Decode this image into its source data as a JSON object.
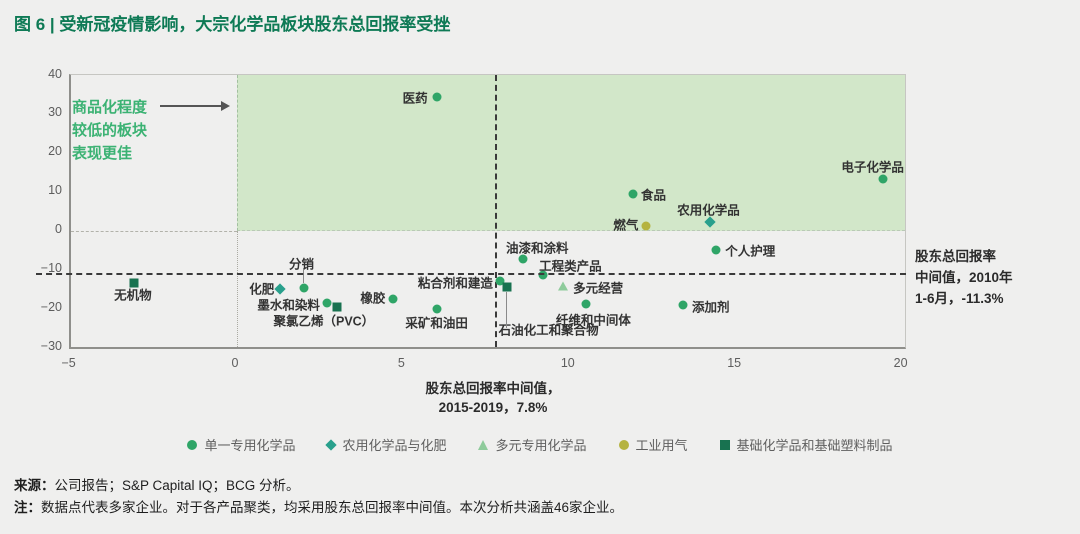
{
  "title": "图 6 | 受新冠疫情影响，大宗化学品板块股东总回报率受挫",
  "colors": {
    "title_green": "#0e7a55",
    "annotation_green": "#3bb273",
    "highlight_region": "#d2e7c9",
    "median_line": "#3a3a3a"
  },
  "chart_data": {
    "type": "scatter",
    "xlabel_line1": "股东总回报率中间值，",
    "xlabel_line2": "2015-2019，7.8%",
    "ylabel": "",
    "xlim": [
      -5,
      20
    ],
    "ylim": [
      -30,
      40
    ],
    "x_ticks": [
      -5,
      0,
      5,
      10,
      15,
      20
    ],
    "y_ticks": [
      40,
      30,
      20,
      10,
      0,
      -10,
      -20,
      -30
    ],
    "median_x_2015_2019": 7.8,
    "median_y_2010_h1": -11.3,
    "quadrant_annotation": {
      "lines": [
        "商品化程度",
        "较低的板块",
        "表现更佳"
      ]
    },
    "right_annotation": {
      "lines": [
        "股东总回报率",
        "中间值，2010年",
        "1-6月，-11.3%"
      ]
    },
    "legend_position": "bottom-center",
    "grid": false,
    "series": [
      {
        "name": "单一专用化学品",
        "marker": "circle",
        "color": "#2fa567",
        "points": [
          {
            "label": "医药",
            "x": 6.0,
            "y": 34.5,
            "lp": {
              "dx": -9,
              "dy": 0,
              "align": "end"
            }
          },
          {
            "label": "电子化学品",
            "x": 19.4,
            "y": 13.5,
            "lp": {
              "dx": -10,
              "dy": -13,
              "align": "center"
            }
          },
          {
            "label": "食品",
            "x": 11.9,
            "y": 9.5,
            "lp": {
              "dx": 8,
              "dy": 0,
              "align": "start"
            }
          },
          {
            "label": "个人护理",
            "x": 14.4,
            "y": -4.9,
            "lp": {
              "dx": 9,
              "dy": 0,
              "align": "start"
            }
          },
          {
            "label": "油漆和涂料",
            "x": 8.6,
            "y": -7.2,
            "lp": {
              "dx": 14,
              "dy": -12,
              "align": "center"
            }
          },
          {
            "label": "工程类产品",
            "x": 9.2,
            "y": -11.3,
            "lp": {
              "dx": -4,
              "dy": -10,
              "align": "start"
            }
          },
          {
            "label": "粘合剂和建造",
            "x": 7.9,
            "y": -12.9,
            "lp": {
              "dx": -7,
              "dy": 1,
              "align": "end"
            }
          },
          {
            "label": "分销",
            "x": 2.0,
            "y": -14.7,
            "lp": {
              "dx": -2,
              "dy": -25,
              "align": "center"
            },
            "leader": {
              "dir": "up",
              "len": 14
            }
          },
          {
            "label": "墨水和染料",
            "x": 2.7,
            "y": -18.5,
            "lp": {
              "dx": -7,
              "dy": 1,
              "align": "end"
            }
          },
          {
            "label": "橡胶",
            "x": 4.7,
            "y": -17.5,
            "lp": {
              "dx": -8,
              "dy": -2,
              "align": "end"
            }
          },
          {
            "label": "采矿和油田",
            "x": 6.0,
            "y": -20.1,
            "lp": {
              "dx": 0,
              "dy": 13,
              "align": "center"
            }
          },
          {
            "label": "纤维和中间体",
            "x": 10.5,
            "y": -18.8,
            "lp": {
              "dx": 7,
              "dy": 15,
              "align": "center"
            }
          },
          {
            "label": "添加剂",
            "x": 13.4,
            "y": -19.0,
            "lp": {
              "dx": 9,
              "dy": 1,
              "align": "start"
            }
          }
        ]
      },
      {
        "name": "农用化学品与化肥",
        "marker": "diamond",
        "color": "#29a08c",
        "points": [
          {
            "label": "化肥",
            "x": 1.3,
            "y": -15.0,
            "lp": {
              "dx": -6,
              "dy": -1,
              "align": "end"
            }
          },
          {
            "label": "农用化学品",
            "x": 14.2,
            "y": 2.3,
            "lp": {
              "dx": -1,
              "dy": -13,
              "align": "center"
            }
          }
        ]
      },
      {
        "name": "多元专用化学品",
        "marker": "triangle",
        "color": "#8ecb9b",
        "points": [
          {
            "label": "多元经营",
            "x": 9.8,
            "y": -14.1,
            "lp": {
              "dx": 10,
              "dy": 1,
              "align": "start"
            }
          }
        ]
      },
      {
        "name": "工业用气",
        "marker": "circle",
        "color": "#b5b340",
        "points": [
          {
            "label": "燃气",
            "x": 12.3,
            "y": 1.3,
            "lp": {
              "dx": -8,
              "dy": -2,
              "align": "end"
            }
          }
        ]
      },
      {
        "name": "基础化学品和基础塑料制品",
        "marker": "square",
        "color": "#187250",
        "points": [
          {
            "label": "无机物",
            "x": -3.1,
            "y": -13.3,
            "lp": {
              "dx": -1,
              "dy": 11,
              "align": "center"
            }
          },
          {
            "label": "聚氯乙烯（PVC）",
            "x": 3.0,
            "y": -19.5,
            "lp": {
              "dx": -13,
              "dy": 13,
              "align": "center"
            }
          },
          {
            "label": "石油化工和聚合物",
            "x": 8.1,
            "y": -14.4,
            "lp": {
              "dx": -8,
              "dy": 42,
              "align": "start"
            },
            "leader": {
              "dir": "down",
              "len": 36
            }
          }
        ]
      }
    ]
  },
  "notes": {
    "source_label": "来源：",
    "source_text": "公司报告；S&P Capital IQ；BCG 分析。",
    "note_label": "注：",
    "note_text": "数据点代表多家企业。对于各产品聚类，均采用股东总回报率中间值。本次分析共涵盖46家企业。"
  }
}
